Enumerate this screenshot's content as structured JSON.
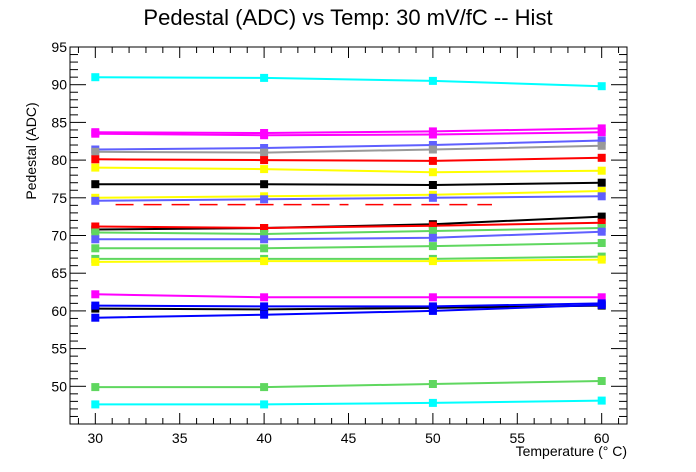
{
  "chart_data": {
    "type": "line",
    "title": "Pedestal (ADC) vs Temp: 30 mV/fC -- Hist",
    "xlabel": "Temperature (° C)",
    "ylabel": "Pedestal (ADC)",
    "xlim": [
      28.5,
      61.5
    ],
    "ylim": [
      45,
      95
    ],
    "x": [
      30,
      40,
      50,
      60
    ],
    "xticks": [
      30,
      35,
      40,
      45,
      50,
      55,
      60
    ],
    "yticks": [
      50,
      55,
      60,
      65,
      70,
      75,
      80,
      85,
      90,
      95
    ],
    "grid": false,
    "legend": "none",
    "series": [
      {
        "color": "#00ffff",
        "values": [
          91.0,
          90.9,
          90.5,
          89.8
        ]
      },
      {
        "color": "#ff00ff",
        "values": [
          83.7,
          83.6,
          83.8,
          84.2
        ]
      },
      {
        "color": "#ff00ff",
        "values": [
          83.5,
          83.3,
          83.4,
          83.7
        ]
      },
      {
        "color": "#5f5fff",
        "values": [
          81.4,
          81.6,
          82.0,
          82.6
        ]
      },
      {
        "color": "#999999",
        "values": [
          81.1,
          81.0,
          81.4,
          81.9
        ]
      },
      {
        "color": "#ff0000",
        "values": [
          80.1,
          80.0,
          79.9,
          80.3
        ]
      },
      {
        "color": "#ffff00",
        "values": [
          79.0,
          78.8,
          78.4,
          78.6
        ]
      },
      {
        "color": "#000000",
        "values": [
          76.8,
          76.8,
          76.7,
          77.0
        ]
      },
      {
        "color": "#ffff00",
        "values": [
          75.0,
          75.2,
          75.4,
          75.9
        ]
      },
      {
        "color": "#5f5fff",
        "values": [
          74.6,
          74.8,
          75.0,
          75.2
        ]
      },
      {
        "color": "#000000",
        "values": [
          70.8,
          71.0,
          71.5,
          72.5
        ]
      },
      {
        "color": "#ff0000",
        "values": [
          71.2,
          71.0,
          71.3,
          71.7
        ]
      },
      {
        "color": "#5fd75f",
        "values": [
          70.4,
          70.2,
          70.6,
          71.0
        ]
      },
      {
        "color": "#5f5fff",
        "values": [
          69.5,
          69.5,
          69.7,
          70.5
        ]
      },
      {
        "color": "#5fd75f",
        "values": [
          68.3,
          68.3,
          68.6,
          69.0
        ]
      },
      {
        "color": "#5fd75f",
        "values": [
          66.9,
          66.9,
          66.9,
          67.2
        ]
      },
      {
        "color": "#ffff00",
        "values": [
          66.5,
          66.6,
          66.6,
          66.8
        ]
      },
      {
        "color": "#ff00ff",
        "values": [
          62.2,
          61.8,
          61.8,
          61.8
        ]
      },
      {
        "color": "#000000",
        "values": [
          60.3,
          60.2,
          60.4,
          60.7
        ]
      },
      {
        "color": "#0000ff",
        "values": [
          60.7,
          60.6,
          60.6,
          61.0
        ]
      },
      {
        "color": "#0000ff",
        "values": [
          59.1,
          59.5,
          60.0,
          60.8
        ]
      },
      {
        "color": "#5fd75f",
        "values": [
          49.9,
          49.9,
          50.3,
          50.7
        ]
      },
      {
        "color": "#00ffff",
        "values": [
          47.6,
          47.6,
          47.8,
          48.1
        ]
      }
    ],
    "dashed_segments": [
      {
        "color": "#ff0000",
        "x": [
          31.2,
          45.0
        ],
        "y": 74.1
      },
      {
        "color": "#ff0000",
        "x": [
          46.0,
          53.5
        ],
        "y": 74.1
      }
    ]
  }
}
